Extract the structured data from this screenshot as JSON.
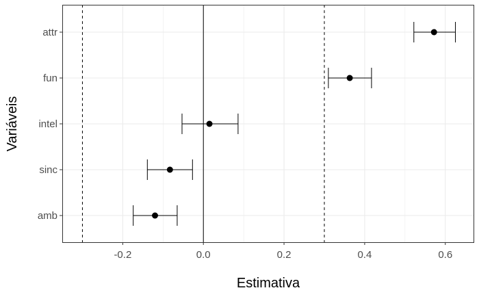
{
  "chart_data": {
    "type": "scatter",
    "subtype": "coefficient-plot-with-error-bars",
    "xlabel": "Estimativa",
    "ylabel": "Variáveis",
    "xlim": [
      -0.35,
      0.67
    ],
    "x_ticks": [
      -0.2,
      0.0,
      0.2,
      0.4,
      0.6
    ],
    "x_tick_labels": [
      "-0.2",
      "0.0",
      "0.2",
      "0.4",
      "0.6"
    ],
    "categories": [
      "attr",
      "fun",
      "intel",
      "sinc",
      "amb"
    ],
    "points": [
      {
        "variable": "attr",
        "estimate": 0.572,
        "lower": 0.522,
        "upper": 0.625
      },
      {
        "variable": "fun",
        "estimate": 0.363,
        "lower": 0.31,
        "upper": 0.417
      },
      {
        "variable": "intel",
        "estimate": 0.015,
        "lower": -0.053,
        "upper": 0.086
      },
      {
        "variable": "sinc",
        "estimate": -0.083,
        "lower": -0.139,
        "upper": -0.027
      },
      {
        "variable": "amb",
        "estimate": -0.12,
        "lower": -0.174,
        "upper": -0.065
      }
    ],
    "reference_lines": [
      {
        "x": 0.0,
        "style": "solid"
      },
      {
        "x": -0.3,
        "style": "dashed"
      },
      {
        "x": 0.3,
        "style": "dashed"
      }
    ],
    "grid": true,
    "theme": "bw",
    "point_color": "#000000",
    "grid_color": "#ebebeb",
    "border_color": "#333333"
  }
}
